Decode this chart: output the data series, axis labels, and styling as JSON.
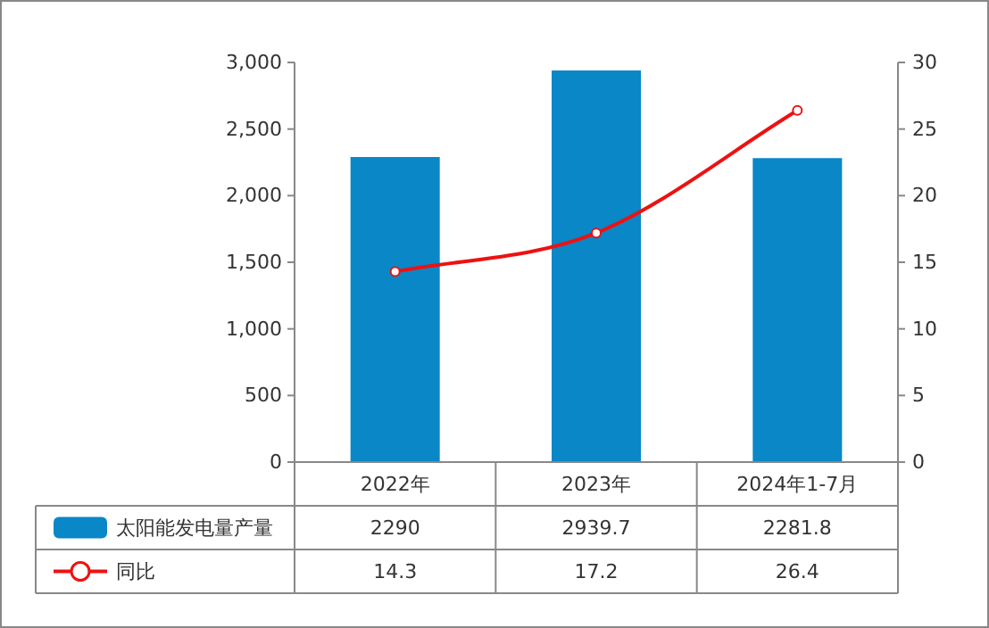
{
  "chart_data": {
    "type": "bar",
    "categories": [
      "2022年",
      "2023年",
      "2024年1-7月"
    ],
    "series": [
      {
        "name": "太阳能发电量产量",
        "color": "#0a87c6",
        "values": [
          2290,
          2939.7,
          2281.8
        ]
      },
      {
        "name": "同比",
        "type": "line",
        "axis": "y2",
        "color": "#ee1111",
        "marker": "circle",
        "values": [
          14.3,
          17.2,
          26.4
        ]
      }
    ],
    "ylim": [
      0,
      3000
    ],
    "yticks": [
      0,
      500,
      {
        "value": 1000,
        "label": "1,000"
      },
      {
        "value": 1500,
        "label": "1,500"
      },
      {
        "value": 2000,
        "label": "2,000"
      },
      {
        "value": 2500,
        "label": "2,500"
      },
      {
        "value": 3000,
        "label": "3,000"
      }
    ],
    "y2lim": [
      0,
      30
    ],
    "y2ticks": [
      0,
      5,
      10,
      15,
      20,
      25,
      30
    ],
    "data_labels": true,
    "legend": "bottom",
    "grid": false
  }
}
